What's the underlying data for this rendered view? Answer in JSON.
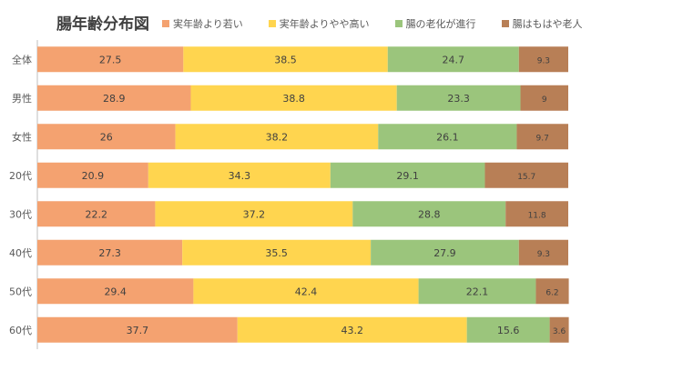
{
  "chart_data": {
    "type": "bar",
    "orientation": "horizontal",
    "stacked": true,
    "title": "腸年齢分布図",
    "categories": [
      "全体",
      "男性",
      "女性",
      "20代",
      "30代",
      "40代",
      "50代",
      "60代"
    ],
    "series": [
      {
        "name": "実年齢より若い",
        "color": "#F4A270",
        "values": [
          27.5,
          28.9,
          26,
          20.9,
          22.2,
          27.3,
          29.4,
          37.7
        ]
      },
      {
        "name": "実年齢よりやや高い",
        "color": "#FFD54F",
        "values": [
          38.5,
          38.8,
          38.2,
          34.3,
          37.2,
          35.5,
          42.4,
          43.2
        ]
      },
      {
        "name": "腸の老化が進行",
        "color": "#9BC57C",
        "values": [
          24.7,
          23.3,
          26.1,
          29.1,
          28.8,
          27.9,
          22.1,
          15.6
        ]
      },
      {
        "name": "腸はもはや老人",
        "color": "#B87F56",
        "values": [
          9.3,
          9,
          9.7,
          15.7,
          11.8,
          9.3,
          6.2,
          3.6
        ]
      }
    ],
    "xlim": [
      0,
      100
    ],
    "grid": false,
    "legend": "top"
  }
}
